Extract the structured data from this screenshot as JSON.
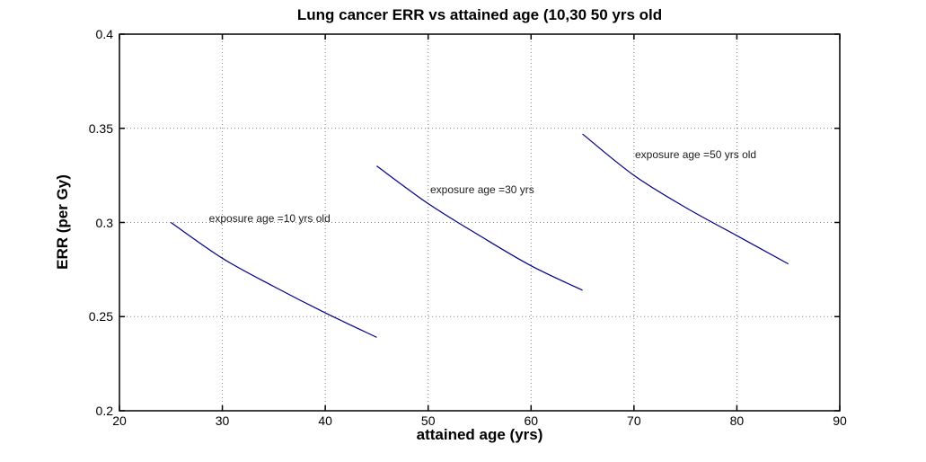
{
  "chart_data": {
    "type": "line",
    "title": "Lung cancer ERR vs attained age (10,30 50 yrs old",
    "xlabel": "attained age (yrs)",
    "ylabel": "ERR (per Gy)",
    "xlim": [
      20,
      90
    ],
    "ylim": [
      0.2,
      0.4
    ],
    "xticks": [
      20,
      30,
      40,
      50,
      60,
      70,
      80,
      90
    ],
    "yticks": [
      0.2,
      0.25,
      0.3,
      0.35,
      0.4
    ],
    "xtick_labels": [
      "20",
      "30",
      "40",
      "50",
      "60",
      "70",
      "80",
      "90"
    ],
    "ytick_labels": [
      "0.2",
      "0.25",
      "0.3",
      "0.35",
      "0.4"
    ],
    "grid": true,
    "grid_style": "dotted",
    "legend": "none",
    "line_color": "#00008B",
    "axis_color": "#000000",
    "background_color": "#ffffff",
    "series": [
      {
        "name": "exposure age =10 yrs old",
        "x": [
          25,
          30,
          35,
          40,
          45
        ],
        "y": [
          0.3,
          0.281,
          0.266,
          0.252,
          0.239
        ]
      },
      {
        "name": "exposure age =30 yrs",
        "x": [
          45,
          50,
          55,
          60,
          65
        ],
        "y": [
          0.33,
          0.31,
          0.293,
          0.277,
          0.264
        ]
      },
      {
        "name": "exposure age =50 yrs old",
        "x": [
          65,
          70,
          75,
          80,
          85
        ],
        "y": [
          0.347,
          0.325,
          0.308,
          0.293,
          0.278
        ]
      }
    ],
    "annotations": [
      {
        "text": "exposure age =10 yrs old",
        "x": 28.7,
        "y": 0.302
      },
      {
        "text": "exposure age =30 yrs",
        "x": 50.2,
        "y": 0.3175
      },
      {
        "text": "exposure age =50 yrs old",
        "x": 70.1,
        "y": 0.336
      }
    ]
  }
}
